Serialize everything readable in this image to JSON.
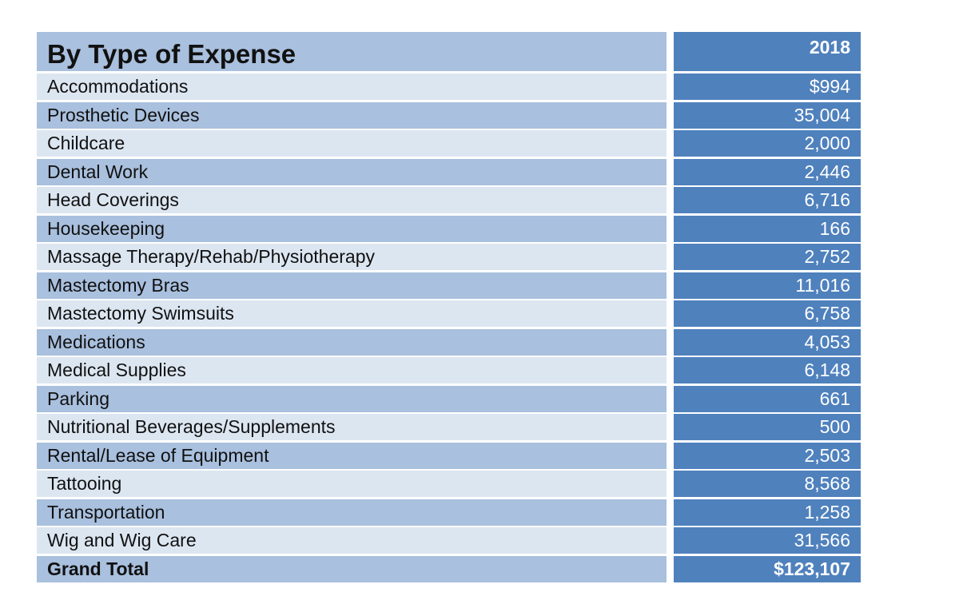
{
  "table": {
    "title": "By Type of Expense",
    "year": "2018",
    "rows": [
      {
        "label": "Accommodations",
        "value": "$994"
      },
      {
        "label": "Prosthetic Devices",
        "value": "35,004"
      },
      {
        "label": "Childcare",
        "value": "2,000"
      },
      {
        "label": "Dental Work",
        "value": "2,446"
      },
      {
        "label": "Head Coverings",
        "value": "6,716"
      },
      {
        "label": "Housekeeping",
        "value": "166"
      },
      {
        "label": "Massage Therapy/Rehab/Physiotherapy",
        "value": "2,752"
      },
      {
        "label": "Mastectomy Bras",
        "value": "11,016"
      },
      {
        "label": "Mastectomy Swimsuits",
        "value": "6,758"
      },
      {
        "label": "Medications",
        "value": "4,053"
      },
      {
        "label": "Medical Supplies",
        "value": "6,148"
      },
      {
        "label": "Parking",
        "value": "661"
      },
      {
        "label": "Nutritional Beverages/Supplements",
        "value": "500"
      },
      {
        "label": "Rental/Lease of Equipment",
        "value": "2,503"
      },
      {
        "label": "Tattooing",
        "value": "8,568"
      },
      {
        "label": "Transportation",
        "value": "1,258"
      },
      {
        "label": "Wig and Wig Care",
        "value": "31,566"
      }
    ],
    "total": {
      "label": "Grand Total",
      "value": "$123,107"
    }
  },
  "colors": {
    "header_value_bg": "#4f81bd",
    "row_light_bg": "#dce6f1",
    "row_dark_bg": "#a9c0de"
  }
}
